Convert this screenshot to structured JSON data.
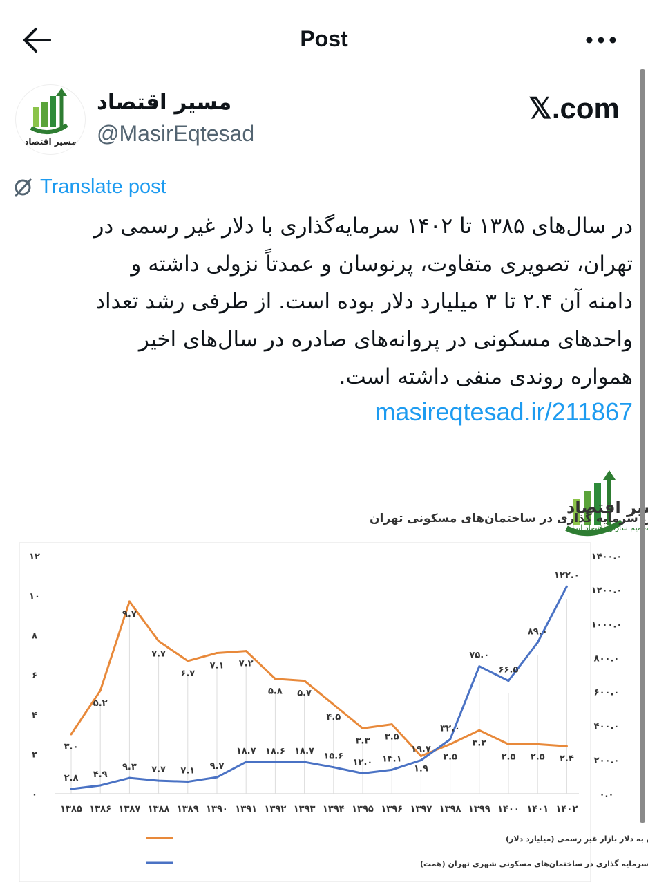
{
  "header": {
    "title": "Post",
    "back_icon": "arrow-left-icon",
    "more_icon": "ellipsis-icon"
  },
  "author": {
    "name": "مسیر اقتصاد",
    "handle": "@MasirEqtesad",
    "avatar_text": "مسیر اقتصاد",
    "source": "𝕏.com"
  },
  "translate_label": "Translate post",
  "post": {
    "lines": [
      "در سال‌های ۱۳۸۵ تا ۱۴۰۲ سرمایه‌گذاری با دلار غیر رسمی در",
      "تهران، تصویری متفاوت، پرنوسان و عمدتاً نزولی داشته و",
      "دامنه آن ۲.۴ تا ۳ میلیارد دلار بوده است. از طرفی رشد تعداد",
      "واحدهای مسکونی در پروانه‌های صادره در سال‌های اخیر",
      "همواره روندی منفی داشته است."
    ],
    "link": "masireqtesad.ir/211867"
  },
  "chart_logo": {
    "name": "مسیر اقتصاد",
    "tagline": "رسانه تصمیم سازان اقتصاد ایران"
  },
  "chart_data": {
    "type": "line",
    "title": "ارزش سرمایه گذاری در ساختمان‌های مسکونی تهران",
    "categories": [
      "۱۳۸۵",
      "۱۳۸۶",
      "۱۳۸۷",
      "۱۳۸۸",
      "۱۳۸۹",
      "۱۳۹۰",
      "۱۳۹۱",
      "۱۳۹۲",
      "۱۳۹۳",
      "۱۳۹۴",
      "۱۳۹۵",
      "۱۳۹۶",
      "۱۳۹۷",
      "۱۳۹۸",
      "۱۳۹۹",
      "۱۴۰۰",
      "۱۴۰۱",
      "۱۴۰۲"
    ],
    "y_left": {
      "lim": [
        0,
        12
      ],
      "ticks": [
        "۰",
        "۲",
        "۴",
        "۶",
        "۸",
        "۱۰",
        "۱۲"
      ]
    },
    "y_right": {
      "lim": [
        0,
        1400
      ],
      "ticks": [
        "۰.۰",
        "۲۰۰.۰",
        "۴۰۰.۰",
        "۶۰۰.۰",
        "۸۰۰.۰",
        "۱۰۰۰.۰",
        "۱۲۰۰.۰",
        "۱۴۰۰.۰"
      ]
    },
    "grid": "vertical drop lines",
    "legend_position": "bottom",
    "series": [
      {
        "name": "سرمایه گذاری در ساختمان‌های مسکونی شهری تهران به دلار بازار غیر رسمی (میلیارد دلار)",
        "axis": "left",
        "color": "#e8893a",
        "values": [
          3.0,
          5.2,
          9.7,
          7.7,
          6.7,
          7.1,
          7.2,
          5.8,
          5.7,
          4.5,
          3.3,
          3.5,
          1.9,
          2.5,
          3.2,
          2.5,
          2.5,
          2.4
        ],
        "labels": [
          "۳.۰",
          "۵.۲",
          "۹.۷",
          "۷.۷",
          "۶.۷",
          "۷.۱",
          "۷.۲",
          "۵.۸",
          "۵.۷",
          "۴.۵",
          "۳.۳",
          "۳.۵",
          "۱.۹",
          "۲.۵",
          "۳.۲",
          "۲.۵",
          "۲.۵",
          "۲.۴"
        ]
      },
      {
        "name": "ارزش سرمایه گذاری در ساختمان‌های مسکونی شهری تهران (همت)",
        "axis": "right",
        "color": "#4a72c4",
        "values": [
          28,
          49,
          93,
          77,
          71,
          97,
          187,
          186,
          187,
          156,
          120,
          141,
          197,
          320,
          750,
          665,
          890,
          1220
        ],
        "labels": [
          "۲.۸",
          "۴.۹",
          "۹.۳",
          "۷.۷",
          "۷.۱",
          "۹.۷",
          "۱۸.۷",
          "۱۸.۶",
          "۱۸.۷",
          "۱۵.۶",
          "۱۲.۰",
          "۱۴.۱",
          "۱۹.۷",
          "۳۲.۰",
          "۷۵.۰",
          "۶۶.۵",
          "۸۹.۰",
          "۱۲۲.۰"
        ]
      }
    ]
  }
}
